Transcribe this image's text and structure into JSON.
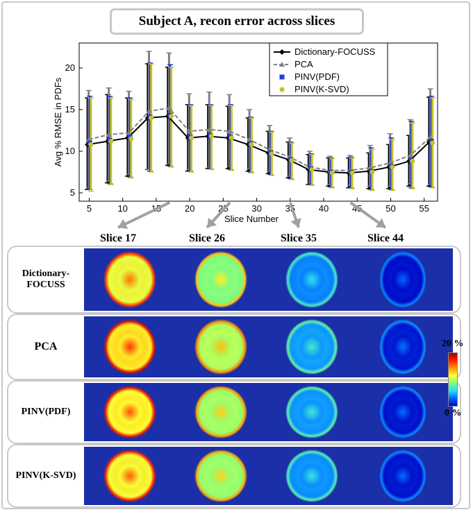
{
  "figure": {
    "title": "Subject A, recon error across slices"
  },
  "chart_data": {
    "type": "line",
    "title": "Subject A, recon error across slices",
    "xlabel": "Slice Number",
    "ylabel": "Avg % RMSE in PDFs",
    "xlim": [
      3.5,
      57
    ],
    "ylim": [
      4,
      23
    ],
    "xticks": [
      5,
      10,
      15,
      20,
      25,
      30,
      35,
      40,
      45,
      50,
      55
    ],
    "yticks": [
      5,
      10,
      15,
      20
    ],
    "grid": false,
    "legend_position": "top-right",
    "x": [
      5,
      8,
      11,
      14,
      17,
      20,
      23,
      26,
      29,
      32,
      35,
      38,
      41,
      44,
      47,
      50,
      53,
      56
    ],
    "series": [
      {
        "name": "Dictionary-FOCUSS",
        "color": "#000000",
        "marker": "diamond",
        "line": "solid",
        "values": [
          10.8,
          11.2,
          11.6,
          14.0,
          14.2,
          11.6,
          11.8,
          11.6,
          10.8,
          9.8,
          9.0,
          7.8,
          7.5,
          7.4,
          7.6,
          8.1,
          8.8,
          11.1
        ],
        "err_low": [
          5.4,
          6.2,
          7.0,
          7.8,
          8.3,
          7.6,
          7.9,
          7.9,
          7.6,
          7.3,
          6.8,
          6.0,
          5.8,
          5.6,
          5.5,
          5.5,
          5.8,
          5.8
        ],
        "err_high": [
          16.4,
          16.8,
          16.4,
          20.5,
          20.1,
          15.6,
          15.6,
          15.4,
          14.0,
          12.4,
          11.1,
          9.6,
          9.2,
          9.2,
          9.8,
          10.8,
          11.9,
          16.5
        ]
      },
      {
        "name": "PCA",
        "color": "#808080",
        "marker": "triangle",
        "line": "dashed",
        "values": [
          11.4,
          12.0,
          12.2,
          14.8,
          15.2,
          12.4,
          12.6,
          12.4,
          11.4,
          10.2,
          9.3,
          8.1,
          7.7,
          7.7,
          8.0,
          8.6,
          9.5,
          11.7
        ],
        "err_low": [
          5.6,
          6.4,
          7.2,
          7.8,
          8.5,
          7.8,
          8.1,
          8.2,
          7.9,
          7.6,
          7.0,
          6.2,
          6.0,
          5.9,
          5.8,
          5.8,
          6.1,
          6.0
        ],
        "err_high": [
          17.3,
          17.6,
          17.2,
          22.0,
          21.8,
          16.9,
          17.1,
          16.8,
          15.0,
          13.1,
          11.6,
          10.0,
          9.4,
          9.5,
          10.7,
          12.1,
          13.8,
          17.5
        ]
      },
      {
        "name": "PINV(PDF)",
        "color": "#1f3fe0",
        "marker": "square",
        "line": "none",
        "values": [
          11.0,
          11.3,
          11.7,
          14.1,
          14.3,
          11.7,
          11.9,
          11.7,
          10.9,
          9.8,
          9.0,
          7.9,
          7.5,
          7.5,
          7.6,
          8.2,
          8.9,
          11.2
        ],
        "err_low": [
          5.4,
          6.1,
          6.9,
          7.6,
          8.2,
          7.6,
          7.9,
          7.8,
          7.5,
          7.2,
          6.7,
          6.0,
          5.7,
          5.6,
          5.4,
          5.4,
          5.6,
          5.7
        ],
        "err_high": [
          16.6,
          16.6,
          16.4,
          20.6,
          20.4,
          15.6,
          15.6,
          15.6,
          14.1,
          12.4,
          11.1,
          9.7,
          9.2,
          9.3,
          10.4,
          11.6,
          13.6,
          16.6
        ]
      },
      {
        "name": "PINV(K-SVD)",
        "color": "#c8c020",
        "marker": "circle",
        "line": "none",
        "values": [
          10.8,
          11.2,
          11.5,
          14.0,
          14.2,
          11.6,
          11.8,
          11.6,
          10.8,
          9.7,
          8.9,
          7.8,
          7.4,
          7.4,
          7.5,
          8.1,
          8.8,
          11.0
        ],
        "err_low": [
          5.2,
          6.0,
          6.8,
          7.5,
          8.1,
          7.5,
          7.8,
          7.7,
          7.4,
          7.1,
          6.6,
          5.9,
          5.6,
          5.5,
          5.3,
          5.3,
          5.5,
          5.6
        ],
        "err_high": [
          16.4,
          16.4,
          16.2,
          20.5,
          20.1,
          15.5,
          15.5,
          15.5,
          14.0,
          12.3,
          11.0,
          9.6,
          9.1,
          9.2,
          10.2,
          11.4,
          13.4,
          16.4
        ]
      }
    ],
    "arrows_to_slices": [
      17,
      26,
      35,
      44
    ]
  },
  "panel": {
    "columns": [
      "Slice 17",
      "Slice 26",
      "Slice 35",
      "Slice 44"
    ],
    "rows": [
      "Dictionary-FOCUSS",
      "PCA",
      "PINV(PDF)",
      "PINV(K-SVD)"
    ],
    "colorbar": {
      "max_label": "20 %",
      "min_label": "0 %"
    },
    "error_levels": [
      [
        0.85,
        0.72,
        0.42,
        0.2
      ],
      [
        0.9,
        0.78,
        0.46,
        0.22
      ],
      [
        0.88,
        0.76,
        0.45,
        0.21
      ],
      [
        0.87,
        0.75,
        0.44,
        0.21
      ]
    ]
  }
}
